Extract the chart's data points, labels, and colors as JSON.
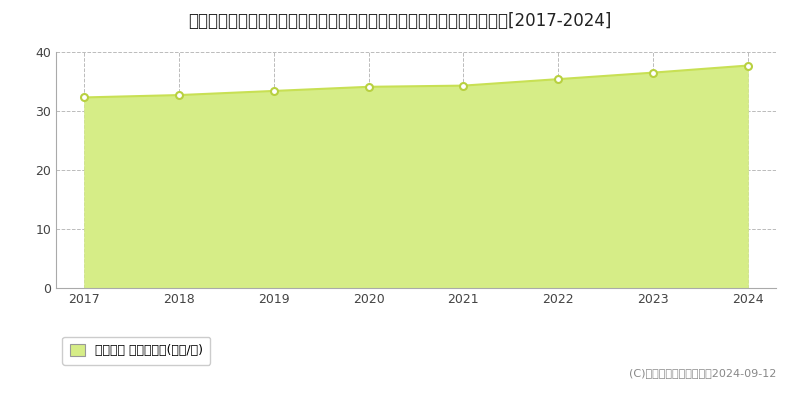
{
  "title": "新潟県新潟市中央区弁天橋通３丁目８５６番１外　地価公示　地価推移[2017-2024]",
  "years": [
    2017,
    2018,
    2019,
    2020,
    2021,
    2022,
    2023,
    2024
  ],
  "values": [
    32.3,
    32.7,
    33.4,
    34.1,
    34.3,
    35.4,
    36.5,
    37.7
  ],
  "line_color": "#c8e054",
  "fill_color": "#d6ed87",
  "marker_color": "#ffffff",
  "marker_edge_color": "#b8d040",
  "ylim": [
    0,
    40
  ],
  "yticks": [
    0,
    10,
    20,
    30,
    40
  ],
  "grid_color": "#bbbbbb",
  "bg_color": "#ffffff",
  "legend_label": "地価公示 平均坪単価(万円/坪)",
  "copyright_text": "(C)土地価格ドットコム　2024-09-12",
  "title_fontsize": 12,
  "tick_fontsize": 9,
  "legend_fontsize": 9,
  "copyright_fontsize": 8,
  "axis_color": "#666666",
  "spine_color": "#aaaaaa"
}
